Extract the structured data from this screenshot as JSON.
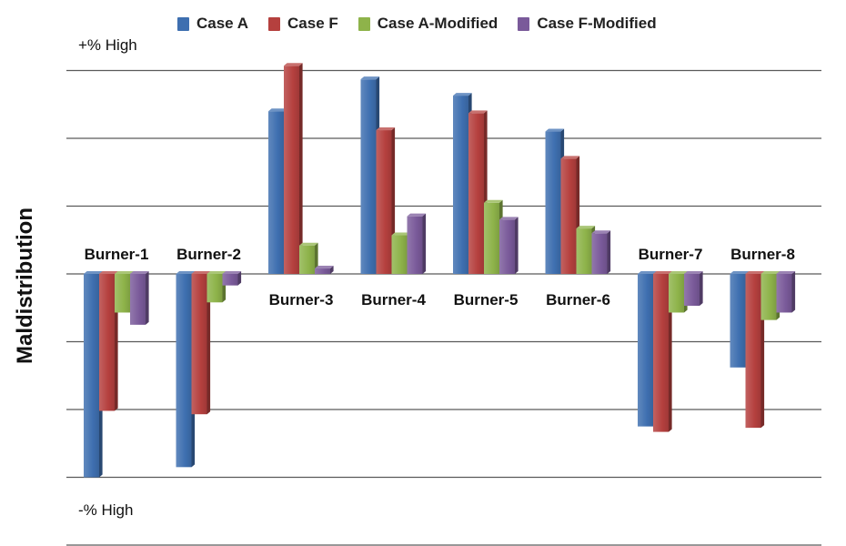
{
  "chart_data": {
    "type": "bar",
    "title": "",
    "xlabel": "",
    "ylabel": "Maldistribution",
    "top_annotation": "+% High",
    "bottom_annotation": "-% High",
    "categories": [
      "Burner-1",
      "Burner-2",
      "Burner-3",
      "Burner-4",
      "Burner-5",
      "Burner-6",
      "Burner-7",
      "Burner-8"
    ],
    "series": [
      {
        "name": "Case A",
        "color": "#3e6fb0",
        "values": [
          -3.0,
          -2.85,
          2.4,
          2.87,
          2.63,
          2.1,
          -2.25,
          -1.38
        ]
      },
      {
        "name": "Case F",
        "color": "#b5403e",
        "values": [
          -2.02,
          -2.07,
          3.07,
          2.12,
          2.37,
          1.7,
          -2.33,
          -2.27
        ]
      },
      {
        "name": "Case A-Modified",
        "color": "#8eb34a",
        "values": [
          -0.57,
          -0.42,
          0.42,
          0.57,
          1.05,
          0.67,
          -0.57,
          -0.68
        ]
      },
      {
        "name": "Case F-Modified",
        "color": "#7a5a9a",
        "values": [
          -0.75,
          -0.17,
          0.08,
          0.85,
          0.8,
          0.6,
          -0.47,
          -0.57
        ]
      }
    ],
    "grid": true,
    "legend_position": "top",
    "ylim": [
      -4,
      3
    ]
  }
}
